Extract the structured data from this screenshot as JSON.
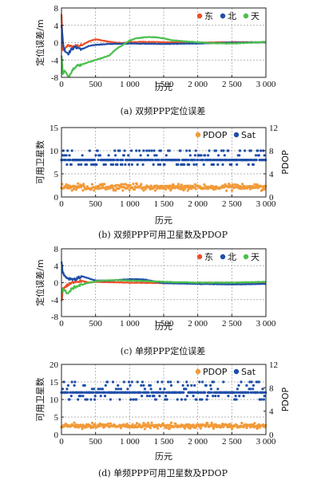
{
  "colors": {
    "east": "#e8502a",
    "north": "#1f4fa8",
    "up": "#4cbf4c",
    "pdop": "#f29a38",
    "sat": "#1f4fa8",
    "grid": "#9a9a9a"
  },
  "chart_data": [
    {
      "type": "line",
      "caption": "(a) 双频PPP定位误差",
      "xlabel": "历元",
      "ylabel": "定位误差/m",
      "xlim": [
        0,
        3000
      ],
      "ylim": [
        -8,
        8
      ],
      "xticks": [
        "0",
        "500",
        "1 000",
        "1 500",
        "2 000",
        "2 500",
        "3 000"
      ],
      "yticks": [
        "8",
        "4",
        "0",
        "-4",
        "-8"
      ],
      "grid": true,
      "legend_position": "top-right",
      "series": [
        {
          "name": "东",
          "color": "#e8502a",
          "x": [
            0,
            20,
            50,
            100,
            150,
            200,
            300,
            400,
            500,
            600,
            700,
            800,
            900,
            1000,
            1200,
            1500,
            2000,
            2500,
            3000
          ],
          "y": [
            6.5,
            -2.0,
            -1.5,
            -0.5,
            -1.0,
            -0.8,
            -0.6,
            0.3,
            0.8,
            0.5,
            0.2,
            0.0,
            -0.1,
            0.1,
            0.2,
            0.1,
            0.0,
            0.1,
            0.1
          ]
        },
        {
          "name": "北",
          "color": "#1f4fa8",
          "x": [
            0,
            30,
            60,
            100,
            150,
            200,
            300,
            400,
            500,
            700,
            1000,
            1500,
            2000,
            2500,
            3000
          ],
          "y": [
            4.0,
            -1.0,
            -2.0,
            -2.5,
            -1.5,
            -1.0,
            -1.5,
            -0.8,
            -0.5,
            -0.3,
            -0.2,
            -0.3,
            -0.2,
            0.0,
            0.1
          ]
        },
        {
          "name": "天",
          "color": "#4cbf4c",
          "x": [
            0,
            20,
            50,
            100,
            150,
            200,
            300,
            400,
            500,
            600,
            700,
            800,
            900,
            1000,
            1100,
            1200,
            1300,
            1400,
            1500,
            1600,
            1800,
            2000,
            2200,
            2500,
            2800,
            3000
          ],
          "y": [
            -3.0,
            -7.0,
            -6.5,
            -8.0,
            -6.5,
            -5.5,
            -5.0,
            -4.5,
            -4.0,
            -3.5,
            -3.0,
            -1.5,
            -0.5,
            0.5,
            1.0,
            1.2,
            1.3,
            1.2,
            1.0,
            0.6,
            0.3,
            0.1,
            -0.1,
            -0.2,
            0.0,
            0.2
          ]
        }
      ]
    },
    {
      "type": "scatter",
      "caption": "(b) 双频PPP可用卫星数及PDOP",
      "xlabel": "历元",
      "ylabel": "可用卫星数",
      "ylabel_right": "PDOP",
      "xlim": [
        0,
        3000
      ],
      "ylim": [
        0,
        15
      ],
      "ylim_right": [
        0,
        12
      ],
      "xticks": [
        "0",
        "500",
        "1 000",
        "1 500",
        "2 000",
        "2 500",
        "3 000"
      ],
      "yticks": [
        "15",
        "10",
        "5",
        "0"
      ],
      "yticks_right": [
        "12",
        "8",
        "4",
        "0"
      ],
      "grid": true,
      "legend_position": "top-right",
      "series": [
        {
          "name": "PDOP",
          "color": "#f29a38",
          "axis": "right",
          "levels": [
            1.3,
            1.7,
            2.1
          ],
          "typical": 1.7
        },
        {
          "name": "Sat",
          "color": "#1f4fa8",
          "axis": "left",
          "levels": [
            7,
            8,
            9,
            10
          ],
          "typical": 8
        }
      ]
    },
    {
      "type": "line",
      "caption": "(c) 单频PPP定位误差",
      "xlabel": "历元",
      "ylabel": "定位误差/m",
      "xlim": [
        0,
        3000
      ],
      "ylim": [
        -8,
        8
      ],
      "xticks": [
        "0",
        "500",
        "1 000",
        "1 500",
        "2 000",
        "2 500",
        "3 000"
      ],
      "yticks": [
        "8",
        "4",
        "0",
        "-4",
        "-8"
      ],
      "grid": true,
      "legend_position": "top-right",
      "series": [
        {
          "name": "东",
          "color": "#e8502a",
          "x": [
            0,
            20,
            50,
            100,
            200,
            300,
            400,
            500,
            700,
            1000,
            1500,
            2000,
            2500,
            3000
          ],
          "y": [
            -4.5,
            -1.5,
            -1.0,
            -0.5,
            0.3,
            0.4,
            0.0,
            0.2,
            0.1,
            0.0,
            -0.1,
            0.0,
            0.0,
            0.1
          ]
        },
        {
          "name": "北",
          "color": "#1f4fa8",
          "x": [
            0,
            20,
            50,
            100,
            200,
            300,
            400,
            500,
            700,
            1000,
            1200,
            1500,
            1800,
            2000,
            2500,
            3000
          ],
          "y": [
            5.0,
            2.5,
            1.5,
            1.0,
            0.8,
            1.5,
            1.0,
            0.5,
            0.5,
            0.8,
            0.8,
            -0.1,
            -0.2,
            -0.3,
            -0.4,
            -0.3
          ]
        },
        {
          "name": "天",
          "color": "#4cbf4c",
          "x": [
            0,
            20,
            50,
            100,
            150,
            200,
            300,
            400,
            500,
            600,
            800,
            1000,
            1200,
            1500,
            2000,
            2500,
            3000
          ],
          "y": [
            -2.5,
            -1.5,
            -2.0,
            -2.5,
            -1.5,
            -1.0,
            -0.5,
            0.0,
            0.3,
            0.5,
            0.6,
            0.5,
            0.4,
            0.2,
            0.0,
            0.0,
            0.2
          ]
        }
      ]
    },
    {
      "type": "scatter",
      "caption": "(d) 单频PPP可用卫星数及PDOP",
      "xlabel": "历元",
      "ylabel": "可用卫星数",
      "ylabel_right": "PDOP",
      "xlim": [
        0,
        3000
      ],
      "ylim": [
        0,
        20
      ],
      "ylim_right": [
        0,
        12
      ],
      "xticks": [
        "0",
        "500",
        "1 000",
        "1 500",
        "2 000",
        "2 500",
        "3 000"
      ],
      "yticks": [
        "20",
        "15",
        "10",
        "5",
        "0"
      ],
      "yticks_right": [
        "12",
        "8",
        "4",
        "0"
      ],
      "grid": true,
      "legend_position": "top-right",
      "series": [
        {
          "name": "PDOP",
          "color": "#f29a38",
          "axis": "right",
          "levels": [
            1.2,
            1.5,
            1.8
          ],
          "typical": 1.5
        },
        {
          "name": "Sat",
          "color": "#1f4fa8",
          "axis": "left",
          "levels": [
            10,
            11,
            12,
            13,
            14,
            15
          ],
          "typical": 12
        }
      ]
    }
  ]
}
